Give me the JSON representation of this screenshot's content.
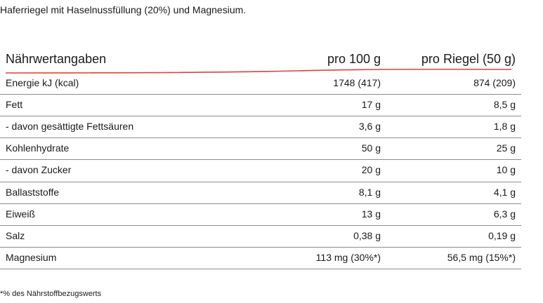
{
  "intro": "Haferriegel mit Haselnussfüllung (20%) und Magnesium.",
  "table": {
    "header": [
      "Nährwertangaben",
      "pro 100 g",
      "pro Riegel (50 g)"
    ],
    "rows": [
      [
        "Energie kJ (kcal)",
        "1748 (417)",
        "874 (209)"
      ],
      [
        "Fett",
        "17 g",
        "8,5 g"
      ],
      [
        "- davon gesättigte Fettsäuren",
        "3,6 g",
        "1,8 g"
      ],
      [
        "Kohlenhydrate",
        "50 g",
        "25 g"
      ],
      [
        "- davon Zucker",
        "20 g",
        "10 g"
      ],
      [
        "Ballaststoffe",
        "8,1 g",
        "4,1 g"
      ],
      [
        "Eiweiß",
        "13 g",
        "6,3 g"
      ],
      [
        "Salz",
        "0,38 g",
        "0,19 g"
      ],
      [
        "Magnesium",
        "113 mg (30%*)",
        "56,5 mg (15%*)"
      ]
    ]
  },
  "footnote": "*% des Nährstoffbezugswerts"
}
